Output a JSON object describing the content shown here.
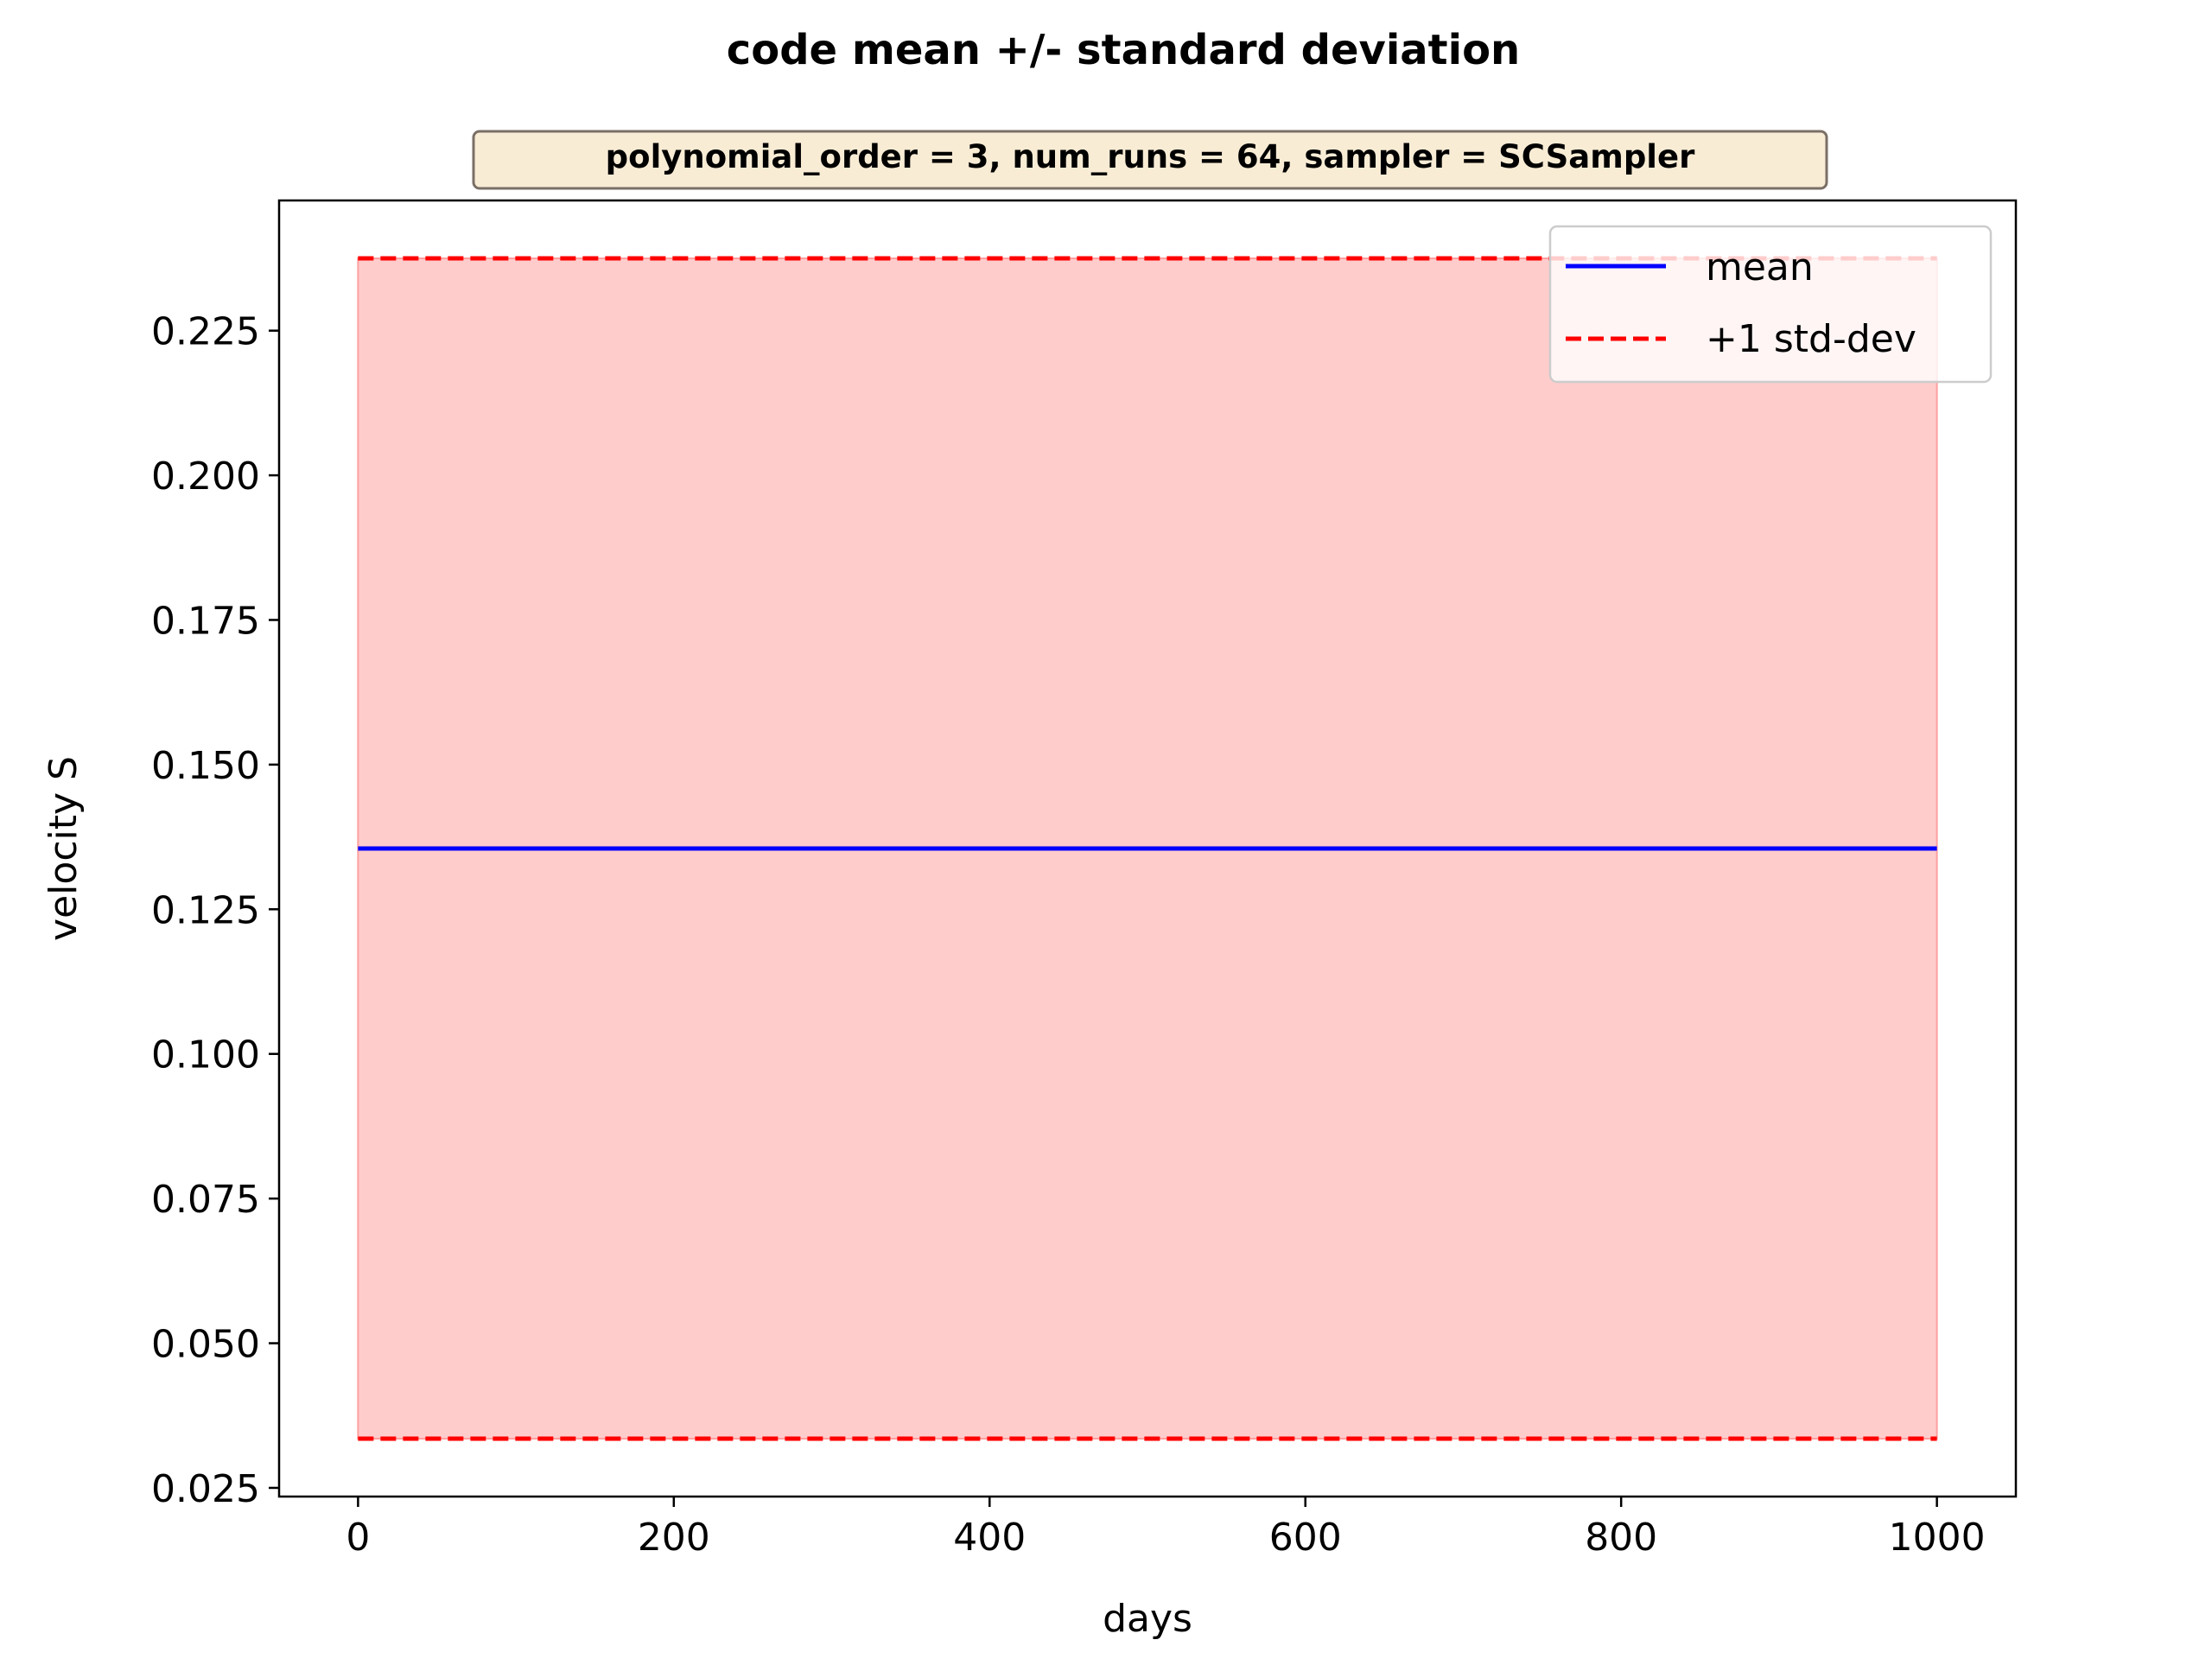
{
  "chart_data": {
    "type": "line",
    "title": "code mean +/- standard deviation",
    "subtitle": "polynomial_order = 3, num_runs = 64, sampler = SCSampler",
    "xlabel": "days",
    "ylabel": "velocity S",
    "xlim": [
      -50,
      1050
    ],
    "ylim": [
      0.0235,
      0.2475
    ],
    "xticks": [
      0,
      200,
      400,
      600,
      800,
      1000
    ],
    "yticks": [
      0.025,
      0.05,
      0.075,
      0.1,
      0.125,
      0.15,
      0.175,
      0.2,
      0.225
    ],
    "ytick_format": 3,
    "grid": false,
    "legend_position": "upper right",
    "series": [
      {
        "name": "mean",
        "style": "solid",
        "color": "#0000ff",
        "x": [
          0,
          1000
        ],
        "y": [
          0.1355,
          0.1355
        ]
      },
      {
        "name": "+1 std-dev",
        "style": "dashed",
        "color": "#ff0000",
        "x": [
          0,
          1000
        ],
        "y": [
          0.2375,
          0.2375
        ]
      },
      {
        "style": "dashed",
        "color": "#ff0000",
        "x": [
          0,
          1000
        ],
        "y": [
          0.0335,
          0.0335
        ]
      }
    ],
    "band": {
      "x": [
        0,
        1000
      ],
      "lower": [
        0.0335,
        0.0335
      ],
      "upper": [
        0.2375,
        0.2375
      ],
      "color": "#ffcccc"
    },
    "colors": {
      "axes": "#000000",
      "subtitle_box_fill": "#f8ecd5",
      "subtitle_box_edge": "#7a6f66"
    }
  }
}
